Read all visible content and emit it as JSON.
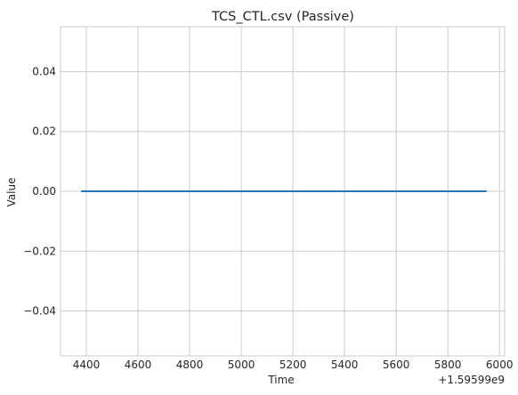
{
  "chart_data": {
    "type": "line",
    "title": "TCS_CTL.csv (Passive)",
    "xlabel": "Time",
    "ylabel": "Value",
    "x_offset_label": "+1.59599e9",
    "xlim": [
      4300,
      6020
    ],
    "ylim": [
      -0.055,
      0.055
    ],
    "x_ticks": [
      4400,
      4600,
      4800,
      5000,
      5200,
      5400,
      5600,
      5800,
      6000
    ],
    "x_tick_labels": [
      "4400",
      "4600",
      "4800",
      "5000",
      "5200",
      "5400",
      "5600",
      "5800",
      "6000"
    ],
    "y_ticks": [
      0.04,
      0.02,
      0.0,
      -0.02,
      -0.04
    ],
    "y_tick_labels": [
      "0.04",
      "0.02",
      "0.00",
      "−0.02",
      "−0.04"
    ],
    "grid": true,
    "series": [
      {
        "color": "#1f77b4",
        "x": [
          4380,
          5950
        ],
        "y": [
          0.0,
          0.0
        ]
      }
    ]
  }
}
